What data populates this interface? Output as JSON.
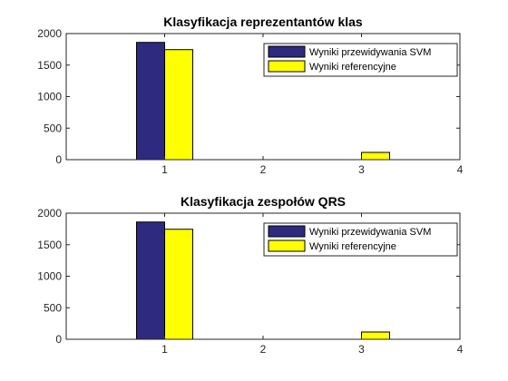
{
  "chart_data": [
    {
      "type": "bar",
      "title": "Klasyfikacja reprezentantów klas",
      "xlabel": "",
      "ylabel": "",
      "xlim": [
        0,
        4
      ],
      "ylim": [
        0,
        2000
      ],
      "xticks": [
        "1",
        "2",
        "3",
        "4"
      ],
      "yticks": [
        "0",
        "500",
        "1000",
        "1500",
        "2000"
      ],
      "grid": false,
      "legend_position": "top-right",
      "series": [
        {
          "name": "Wyniki przewidywania SVM",
          "color": "#2e2a80",
          "x": [
            1,
            2,
            3
          ],
          "values": [
            1860,
            0,
            0
          ]
        },
        {
          "name": "Wyniki referencyjne",
          "color": "#ffff00",
          "x": [
            1,
            2,
            3
          ],
          "values": [
            1745,
            0,
            115
          ]
        }
      ]
    },
    {
      "type": "bar",
      "title": "Klasyfikacja zespołów QRS",
      "xlabel": "",
      "ylabel": "",
      "xlim": [
        0,
        4
      ],
      "ylim": [
        0,
        2000
      ],
      "xticks": [
        "1",
        "2",
        "3",
        "4"
      ],
      "yticks": [
        "0",
        "500",
        "1000",
        "1500",
        "2000"
      ],
      "grid": false,
      "legend_position": "top-right",
      "series": [
        {
          "name": "Wyniki przewidywania SVM",
          "color": "#2e2a80",
          "x": [
            1,
            2,
            3
          ],
          "values": [
            1860,
            0,
            0
          ]
        },
        {
          "name": "Wyniki referencyjne",
          "color": "#ffff00",
          "x": [
            1,
            2,
            3
          ],
          "values": [
            1745,
            0,
            115
          ]
        }
      ]
    }
  ]
}
